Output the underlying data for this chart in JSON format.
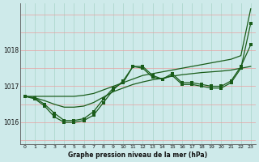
{
  "title": "Graphe pression niveau de la mer (hPa)",
  "background_color": "#ceeaea",
  "grid_color_v": "#a8d4c8",
  "grid_color_h": "#e8a0a0",
  "line_color": "#1a5c1a",
  "x_labels": [
    "0",
    "1",
    "2",
    "3",
    "4",
    "5",
    "6",
    "7",
    "8",
    "9",
    "10",
    "11",
    "12",
    "13",
    "14",
    "15",
    "16",
    "17",
    "18",
    "19",
    "20",
    "21",
    "22",
    "23"
  ],
  "ylim": [
    1015.4,
    1019.3
  ],
  "yticks": [
    1016,
    1017,
    1018
  ],
  "series_marker1": [
    1016.72,
    1016.68,
    1016.5,
    1016.25,
    1016.05,
    1016.05,
    1016.1,
    1016.3,
    1016.65,
    1016.95,
    1017.1,
    1017.55,
    1017.55,
    1017.3,
    1017.2,
    1017.35,
    1017.1,
    1017.1,
    1017.05,
    1017.0,
    1017.0,
    1017.15,
    1017.55,
    1018.15
  ],
  "series_marker2": [
    1016.72,
    1016.65,
    1016.45,
    1016.15,
    1016.0,
    1016.0,
    1016.05,
    1016.2,
    1016.55,
    1016.9,
    1017.15,
    1017.55,
    1017.5,
    1017.25,
    1017.2,
    1017.3,
    1017.05,
    1017.05,
    1017.0,
    1016.95,
    1016.95,
    1017.1,
    1017.5,
    1018.75
  ],
  "series_smooth1": [
    1016.72,
    1016.72,
    1016.72,
    1016.72,
    1016.72,
    1016.72,
    1016.75,
    1016.8,
    1016.9,
    1017.0,
    1017.1,
    1017.2,
    1017.3,
    1017.35,
    1017.4,
    1017.45,
    1017.5,
    1017.55,
    1017.6,
    1017.65,
    1017.7,
    1017.75,
    1017.85,
    1019.15
  ],
  "series_smooth2": [
    1016.72,
    1016.68,
    1016.6,
    1016.5,
    1016.42,
    1016.42,
    1016.45,
    1016.55,
    1016.7,
    1016.85,
    1016.95,
    1017.05,
    1017.12,
    1017.18,
    1017.22,
    1017.28,
    1017.32,
    1017.35,
    1017.38,
    1017.4,
    1017.42,
    1017.45,
    1017.5,
    1017.55
  ]
}
